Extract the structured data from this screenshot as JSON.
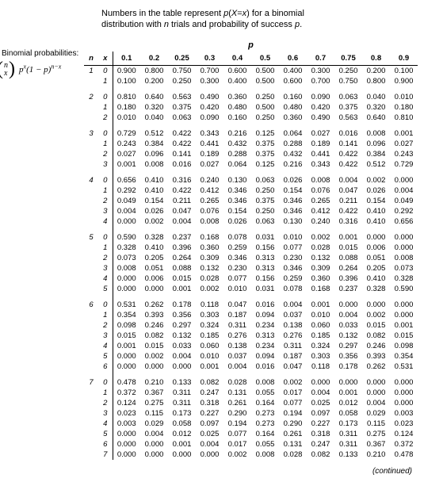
{
  "header": {
    "line1_a": "Numbers in the table represent ",
    "line1_b": "p",
    "line1_c": "(",
    "line1_d": "X",
    "line1_e": "=",
    "line1_f": "x",
    "line1_g": ") for a binomial",
    "line2_a": "distribution with ",
    "line2_b": "n",
    "line2_c": " trials and probability of success ",
    "line2_d": "p",
    "line2_e": "."
  },
  "side_label": "Binomial probabilities:",
  "formula": {
    "top": "n",
    "bot": "x",
    "rest_p": "p",
    "rest_sup1": "x",
    "rest_mid": "(1 − p)",
    "rest_sup2": "n−x"
  },
  "p_header_label": "p",
  "col_headers": {
    "n": "n",
    "x": "x",
    "p_values": [
      "0.1",
      "0.2",
      "0.25",
      "0.3",
      "0.4",
      "0.5",
      "0.6",
      "0.7",
      "0.75",
      "0.8",
      "0.9"
    ]
  },
  "groups": [
    {
      "n": "1",
      "rows": [
        {
          "x": "0",
          "v": [
            "0.900",
            "0.800",
            "0.750",
            "0.700",
            "0.600",
            "0.500",
            "0.400",
            "0.300",
            "0.250",
            "0.200",
            "0.100"
          ]
        },
        {
          "x": "1",
          "v": [
            "0.100",
            "0.200",
            "0.250",
            "0.300",
            "0.400",
            "0.500",
            "0.600",
            "0.700",
            "0.750",
            "0.800",
            "0.900"
          ]
        }
      ]
    },
    {
      "n": "2",
      "rows": [
        {
          "x": "0",
          "v": [
            "0.810",
            "0.640",
            "0.563",
            "0.490",
            "0.360",
            "0.250",
            "0.160",
            "0.090",
            "0.063",
            "0.040",
            "0.010"
          ]
        },
        {
          "x": "1",
          "v": [
            "0.180",
            "0.320",
            "0.375",
            "0.420",
            "0.480",
            "0.500",
            "0.480",
            "0.420",
            "0.375",
            "0.320",
            "0.180"
          ]
        },
        {
          "x": "2",
          "v": [
            "0.010",
            "0.040",
            "0.063",
            "0.090",
            "0.160",
            "0.250",
            "0.360",
            "0.490",
            "0.563",
            "0.640",
            "0.810"
          ]
        }
      ]
    },
    {
      "n": "3",
      "rows": [
        {
          "x": "0",
          "v": [
            "0.729",
            "0.512",
            "0.422",
            "0.343",
            "0.216",
            "0.125",
            "0.064",
            "0.027",
            "0.016",
            "0.008",
            "0.001"
          ]
        },
        {
          "x": "1",
          "v": [
            "0.243",
            "0.384",
            "0.422",
            "0.441",
            "0.432",
            "0.375",
            "0.288",
            "0.189",
            "0.141",
            "0.096",
            "0.027"
          ]
        },
        {
          "x": "2",
          "v": [
            "0.027",
            "0.096",
            "0.141",
            "0.189",
            "0.288",
            "0.375",
            "0.432",
            "0.441",
            "0.422",
            "0.384",
            "0.243"
          ]
        },
        {
          "x": "3",
          "v": [
            "0.001",
            "0.008",
            "0.016",
            "0.027",
            "0.064",
            "0.125",
            "0.216",
            "0.343",
            "0.422",
            "0.512",
            "0.729"
          ]
        }
      ]
    },
    {
      "n": "4",
      "rows": [
        {
          "x": "0",
          "v": [
            "0.656",
            "0.410",
            "0.316",
            "0.240",
            "0.130",
            "0.063",
            "0.026",
            "0.008",
            "0.004",
            "0.002",
            "0.000"
          ]
        },
        {
          "x": "1",
          "v": [
            "0.292",
            "0.410",
            "0.422",
            "0.412",
            "0.346",
            "0.250",
            "0.154",
            "0.076",
            "0.047",
            "0.026",
            "0.004"
          ]
        },
        {
          "x": "2",
          "v": [
            "0.049",
            "0.154",
            "0.211",
            "0.265",
            "0.346",
            "0.375",
            "0.346",
            "0.265",
            "0.211",
            "0.154",
            "0.049"
          ]
        },
        {
          "x": "3",
          "v": [
            "0.004",
            "0.026",
            "0.047",
            "0.076",
            "0.154",
            "0.250",
            "0.346",
            "0.412",
            "0.422",
            "0.410",
            "0.292"
          ]
        },
        {
          "x": "4",
          "v": [
            "0.000",
            "0.002",
            "0.004",
            "0.008",
            "0.026",
            "0.063",
            "0.130",
            "0.240",
            "0.316",
            "0.410",
            "0.656"
          ]
        }
      ]
    },
    {
      "n": "5",
      "rows": [
        {
          "x": "0",
          "v": [
            "0.590",
            "0.328",
            "0.237",
            "0.168",
            "0.078",
            "0.031",
            "0.010",
            "0.002",
            "0.001",
            "0.000",
            "0.000"
          ]
        },
        {
          "x": "1",
          "v": [
            "0.328",
            "0.410",
            "0.396",
            "0.360",
            "0.259",
            "0.156",
            "0.077",
            "0.028",
            "0.015",
            "0.006",
            "0.000"
          ]
        },
        {
          "x": "2",
          "v": [
            "0.073",
            "0.205",
            "0.264",
            "0.309",
            "0.346",
            "0.313",
            "0.230",
            "0.132",
            "0.088",
            "0.051",
            "0.008"
          ]
        },
        {
          "x": "3",
          "v": [
            "0.008",
            "0.051",
            "0.088",
            "0.132",
            "0.230",
            "0.313",
            "0.346",
            "0.309",
            "0.264",
            "0.205",
            "0.073"
          ]
        },
        {
          "x": "4",
          "v": [
            "0.000",
            "0.006",
            "0.015",
            "0.028",
            "0.077",
            "0.156",
            "0.259",
            "0.360",
            "0.396",
            "0.410",
            "0.328"
          ]
        },
        {
          "x": "5",
          "v": [
            "0.000",
            "0.000",
            "0.001",
            "0.002",
            "0.010",
            "0.031",
            "0.078",
            "0.168",
            "0.237",
            "0.328",
            "0.590"
          ]
        }
      ]
    },
    {
      "n": "6",
      "rows": [
        {
          "x": "0",
          "v": [
            "0.531",
            "0.262",
            "0.178",
            "0.118",
            "0.047",
            "0.016",
            "0.004",
            "0.001",
            "0.000",
            "0.000",
            "0.000"
          ]
        },
        {
          "x": "1",
          "v": [
            "0.354",
            "0.393",
            "0.356",
            "0.303",
            "0.187",
            "0.094",
            "0.037",
            "0.010",
            "0.004",
            "0.002",
            "0.000"
          ]
        },
        {
          "x": "2",
          "v": [
            "0.098",
            "0.246",
            "0.297",
            "0.324",
            "0.311",
            "0.234",
            "0.138",
            "0.060",
            "0.033",
            "0.015",
            "0.001"
          ]
        },
        {
          "x": "3",
          "v": [
            "0.015",
            "0.082",
            "0.132",
            "0.185",
            "0.276",
            "0.313",
            "0.276",
            "0.185",
            "0.132",
            "0.082",
            "0.015"
          ]
        },
        {
          "x": "4",
          "v": [
            "0.001",
            "0.015",
            "0.033",
            "0.060",
            "0.138",
            "0.234",
            "0.311",
            "0.324",
            "0.297",
            "0.246",
            "0.098"
          ]
        },
        {
          "x": "5",
          "v": [
            "0.000",
            "0.002",
            "0.004",
            "0.010",
            "0.037",
            "0.094",
            "0.187",
            "0.303",
            "0.356",
            "0.393",
            "0.354"
          ]
        },
        {
          "x": "6",
          "v": [
            "0.000",
            "0.000",
            "0.000",
            "0.001",
            "0.004",
            "0.016",
            "0.047",
            "0.118",
            "0.178",
            "0.262",
            "0.531"
          ]
        }
      ]
    },
    {
      "n": "7",
      "rows": [
        {
          "x": "0",
          "v": [
            "0.478",
            "0.210",
            "0.133",
            "0.082",
            "0.028",
            "0.008",
            "0.002",
            "0.000",
            "0.000",
            "0.000",
            "0.000"
          ]
        },
        {
          "x": "1",
          "v": [
            "0.372",
            "0.367",
            "0.311",
            "0.247",
            "0.131",
            "0.055",
            "0.017",
            "0.004",
            "0.001",
            "0.000",
            "0.000"
          ]
        },
        {
          "x": "2",
          "v": [
            "0.124",
            "0.275",
            "0.311",
            "0.318",
            "0.261",
            "0.164",
            "0.077",
            "0.025",
            "0.012",
            "0.004",
            "0.000"
          ]
        },
        {
          "x": "3",
          "v": [
            "0.023",
            "0.115",
            "0.173",
            "0.227",
            "0.290",
            "0.273",
            "0.194",
            "0.097",
            "0.058",
            "0.029",
            "0.003"
          ]
        },
        {
          "x": "4",
          "v": [
            "0.003",
            "0.029",
            "0.058",
            "0.097",
            "0.194",
            "0.273",
            "0.290",
            "0.227",
            "0.173",
            "0.115",
            "0.023"
          ]
        },
        {
          "x": "5",
          "v": [
            "0.000",
            "0.004",
            "0.012",
            "0.025",
            "0.077",
            "0.164",
            "0.261",
            "0.318",
            "0.311",
            "0.275",
            "0.124"
          ]
        },
        {
          "x": "6",
          "v": [
            "0.000",
            "0.000",
            "0.001",
            "0.004",
            "0.017",
            "0.055",
            "0.131",
            "0.247",
            "0.311",
            "0.367",
            "0.372"
          ]
        },
        {
          "x": "7",
          "v": [
            "0.000",
            "0.000",
            "0.000",
            "0.000",
            "0.002",
            "0.008",
            "0.028",
            "0.082",
            "0.133",
            "0.210",
            "0.478"
          ]
        }
      ]
    }
  ],
  "continued": "(continued)"
}
